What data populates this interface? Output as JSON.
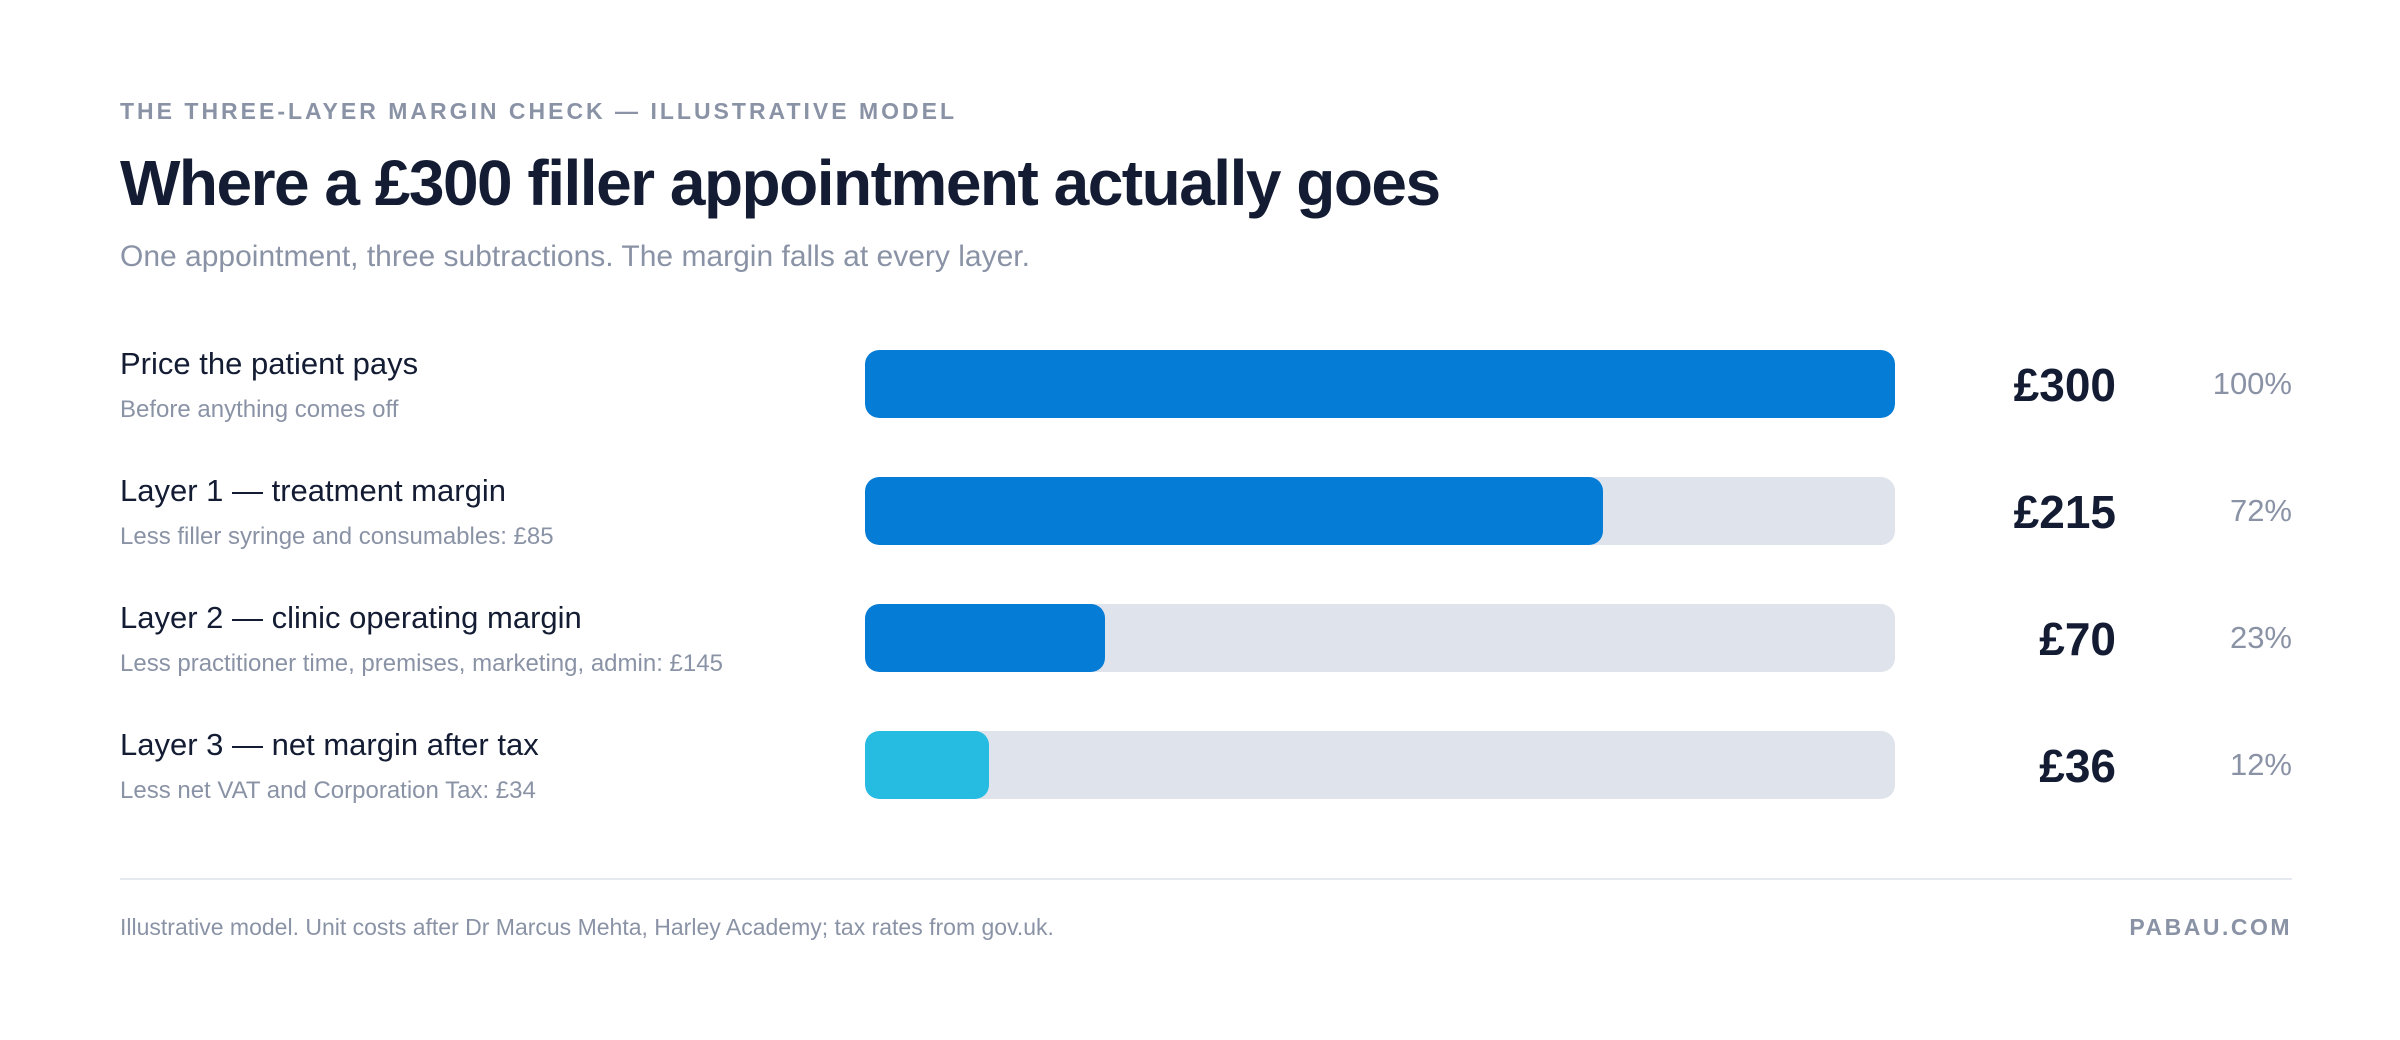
{
  "header": {
    "eyebrow": "THE THREE-LAYER MARGIN CHECK — ILLUSTRATIVE MODEL",
    "title": "Where a £300 filler appointment actually goes",
    "subtitle": "One appointment, three subtractions. The margin falls at every layer."
  },
  "chart_data": {
    "type": "bar",
    "orientation": "horizontal",
    "title": "Where a £300 filler appointment actually goes",
    "subtitle": "One appointment, three subtractions. The margin falls at every layer.",
    "xlim": [
      0,
      300
    ],
    "grid": false,
    "legend": "none",
    "categories": [
      "Price the patient pays",
      "Layer 1 — treatment margin",
      "Layer 2 — clinic operating margin",
      "Layer 3 — net margin after tax"
    ],
    "values": [
      300,
      215,
      70,
      36
    ],
    "rows": [
      {
        "label": "Price the patient pays",
        "note": "Before anything comes off",
        "value": 300,
        "value_label": "£300",
        "percent": 100,
        "percent_label": "100%",
        "color": "#057dd6"
      },
      {
        "label": "Layer 1 — treatment margin",
        "note": "Less filler syringe and consumables: £85",
        "value": 215,
        "value_label": "£215",
        "percent": 72,
        "percent_label": "72%",
        "color": "#057dd6"
      },
      {
        "label": "Layer 2 — clinic operating margin",
        "note": "Less practitioner time, premises, marketing, admin: £145",
        "value": 70,
        "value_label": "£70",
        "percent": 23,
        "percent_label": "23%",
        "color": "#057dd6"
      },
      {
        "label": "Layer 3 — net margin after tax",
        "note": "Less net VAT and Corporation Tax: £34",
        "value": 36,
        "value_label": "£36",
        "percent": 12,
        "percent_label": "12%",
        "color": "#26bce2"
      }
    ]
  },
  "colors": {
    "primary_bar": "#057dd6",
    "final_bar": "#26bce2",
    "track": "#dfe3ec",
    "text_dark": "#131c33",
    "text_muted": "#8a93a6"
  },
  "footer": {
    "note": "Illustrative model. Unit costs after Dr Marcus Mehta, Harley Academy; tax rates from gov.uk.",
    "brand": "PABAU.COM"
  }
}
